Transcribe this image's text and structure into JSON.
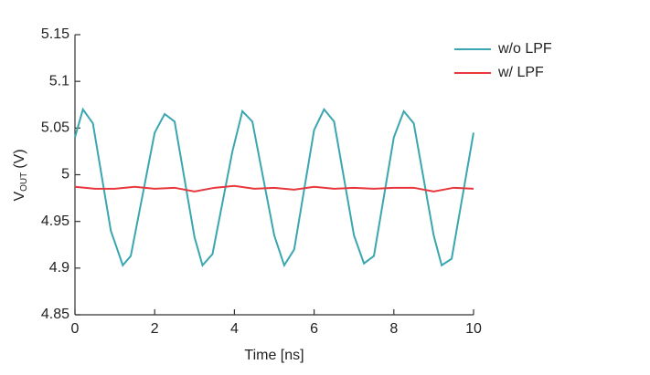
{
  "chart_data": {
    "type": "line",
    "ylabel": {
      "text": "V",
      "subscript": "OUT",
      "suffix": "(V)"
    },
    "xlabel": "Time [ns]",
    "xlim": [
      0,
      10
    ],
    "xticks": [
      0,
      2,
      4,
      6,
      8,
      10
    ],
    "ylim": [
      4.85,
      5.15
    ],
    "yticks": [
      5.15,
      5.1,
      5.05,
      5,
      4.95,
      4.9,
      4.85
    ],
    "legend": "upper right",
    "series": [
      {
        "name": "w/o LPF",
        "color": "#3aa6b0",
        "x": [
          0,
          0.2,
          0.45,
          0.9,
          1.2,
          1.4,
          2.0,
          2.25,
          2.5,
          3.0,
          3.2,
          3.45,
          3.95,
          4.2,
          4.45,
          5.0,
          5.25,
          5.5,
          6.0,
          6.25,
          6.5,
          7.0,
          7.25,
          7.5,
          8.0,
          8.25,
          8.5,
          9.0,
          9.2,
          9.45,
          10
        ],
        "values": [
          5.04,
          5.07,
          5.055,
          4.94,
          4.903,
          4.913,
          5.045,
          5.065,
          5.057,
          4.933,
          4.903,
          4.915,
          5.025,
          5.068,
          5.057,
          4.935,
          4.903,
          4.92,
          5.048,
          5.07,
          5.057,
          4.935,
          4.905,
          4.913,
          5.04,
          5.068,
          5.055,
          4.935,
          4.903,
          4.91,
          5.045
        ]
      },
      {
        "name": "w/ LPF",
        "color": "#e8383d",
        "x": [
          0,
          0.5,
          1,
          1.5,
          2,
          2.5,
          3,
          3.5,
          4,
          4.5,
          5,
          5.5,
          6,
          6.5,
          7,
          7.5,
          8,
          8.5,
          9,
          9.5,
          10
        ],
        "values": [
          4.987,
          4.985,
          4.985,
          4.987,
          4.985,
          4.986,
          4.982,
          4.986,
          4.988,
          4.985,
          4.986,
          4.984,
          4.987,
          4.985,
          4.986,
          4.985,
          4.986,
          4.986,
          4.982,
          4.986,
          4.985
        ]
      }
    ]
  }
}
